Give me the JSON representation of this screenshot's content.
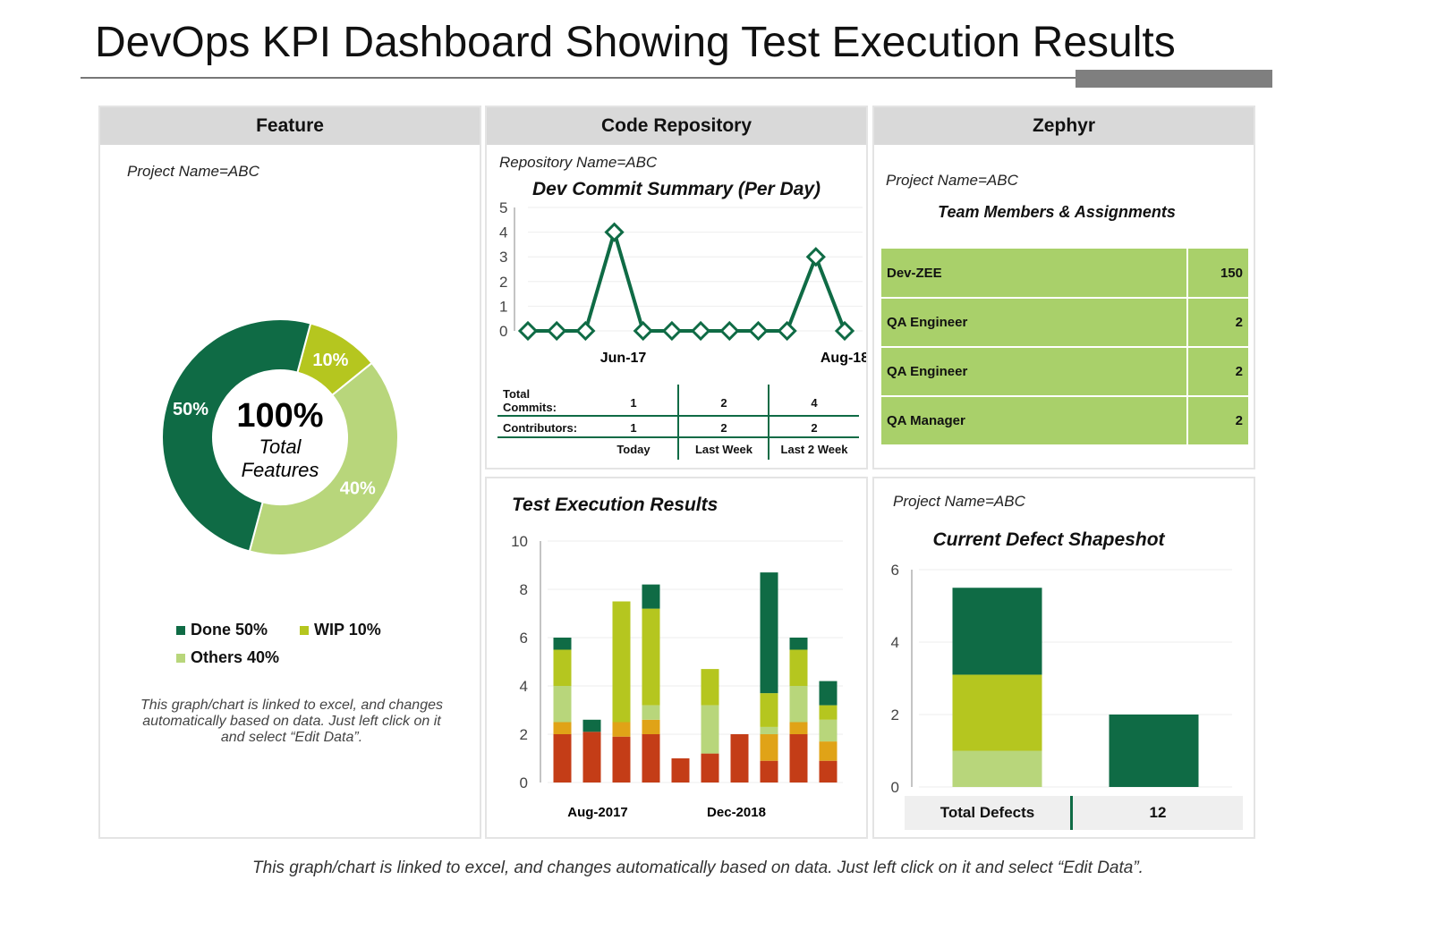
{
  "title": "DevOps KPI Dashboard Showing Test Execution Results",
  "footer": "This graph/chart is linked to excel, and changes automatically based on data. Just left click on it and select “Edit Data”.",
  "feature": {
    "header": "Feature",
    "project": "Project Name=ABC",
    "center_value": "100%",
    "center_label_1": "Total",
    "center_label_2": "Features",
    "note": "This graph/chart is linked to excel, and changes automatically based on data. Just left click on it and select “Edit Data”.",
    "legend": [
      "Done 50%",
      "WIP 10%",
      "Others 40%"
    ]
  },
  "repo": {
    "header": "Code Repository",
    "project": "Repository  Name=ABC",
    "table": {
      "rows": [
        {
          "label": "Total Commits:",
          "values": [
            "1",
            "2",
            "4"
          ]
        },
        {
          "label": "Contributors:",
          "values": [
            "1",
            "2",
            "2"
          ]
        }
      ],
      "columns": [
        "Today",
        "Last Week",
        "Last 2 Week"
      ]
    }
  },
  "zephyr": {
    "header": "Zephyr",
    "project": "Project Name=ABC",
    "subtitle": "Team Members & Assignments",
    "members": [
      {
        "name": "Dev-ZEE",
        "count": "150"
      },
      {
        "name": "QA Engineer",
        "count": "2"
      },
      {
        "name": "QA Engineer",
        "count": "2"
      },
      {
        "name": "QA Manager",
        "count": "2"
      }
    ]
  },
  "defect": {
    "project": "Project Name=ABC",
    "total_label": "Total Defects",
    "total_value": "12"
  },
  "colors": {
    "dark": "#0f6b45",
    "yg": "#b5c61f",
    "light": "#b8d67b",
    "orange": "#e0a317",
    "red": "#c43d17",
    "header": "#d9d9d9",
    "team": "#a9d06a"
  },
  "chart_data": [
    {
      "type": "pie",
      "donut": true,
      "slices": [
        {
          "label": "Done",
          "value": 50,
          "data_label": "50%",
          "color": "#0f6b45"
        },
        {
          "label": "WIP",
          "value": 10,
          "data_label": "10%",
          "color": "#b5c61f"
        },
        {
          "label": "Others",
          "value": 40,
          "data_label": "40%",
          "color": "#b8d67b"
        }
      ]
    },
    {
      "type": "line",
      "title": "Dev Commit Summary (Per Day)",
      "ylim": [
        0,
        5
      ],
      "yticks": [
        0,
        1,
        2,
        3,
        4,
        5
      ],
      "x_tick_labels": [
        {
          "index": 3,
          "label": "Jun-17"
        },
        {
          "index": 11,
          "label": "Aug-18"
        }
      ],
      "values": [
        0,
        0,
        0,
        4,
        0,
        0,
        0,
        0,
        0,
        0,
        3,
        0
      ],
      "grid": true
    },
    {
      "type": "bar",
      "stacked": true,
      "title": "Test Execution Results",
      "ylim": [
        0,
        10
      ],
      "yticks": [
        0,
        2,
        4,
        6,
        8,
        10
      ],
      "x_tick_labels": [
        {
          "index": 2,
          "label": "Aug-2017"
        },
        {
          "index": 7,
          "label": "Dec-2018"
        }
      ],
      "grid": true,
      "series": [
        {
          "color": "#c43d17",
          "values": [
            2,
            2.1,
            1.9,
            2,
            1,
            1.2,
            2,
            0.9,
            2,
            0.9
          ]
        },
        {
          "color": "#e0a317",
          "values": [
            0.5,
            0,
            0.6,
            0.6,
            0,
            0,
            0,
            1.1,
            0.5,
            0.8
          ]
        },
        {
          "color": "#b8d67b",
          "values": [
            1.5,
            0,
            0,
            0.6,
            0,
            2,
            0,
            0.3,
            1.5,
            0.9
          ]
        },
        {
          "color": "#b5c61f",
          "values": [
            1.5,
            0,
            5,
            4,
            0,
            1.5,
            0,
            1.4,
            1.5,
            0.6
          ]
        },
        {
          "color": "#0f6b45",
          "values": [
            0.5,
            0.5,
            0,
            1,
            0,
            0,
            0,
            5,
            0.5,
            1
          ]
        }
      ]
    },
    {
      "type": "bar",
      "stacked": true,
      "title": "Current Defect Shapeshot",
      "ylim": [
        0,
        6
      ],
      "yticks": [
        0,
        2,
        4,
        6
      ],
      "grid": true,
      "series": [
        {
          "color": "#b8d67b",
          "values": [
            1,
            0
          ]
        },
        {
          "color": "#b5c61f",
          "values": [
            2.1,
            0
          ]
        },
        {
          "color": "#0f6b45",
          "values": [
            2.4,
            2
          ]
        }
      ]
    }
  ]
}
